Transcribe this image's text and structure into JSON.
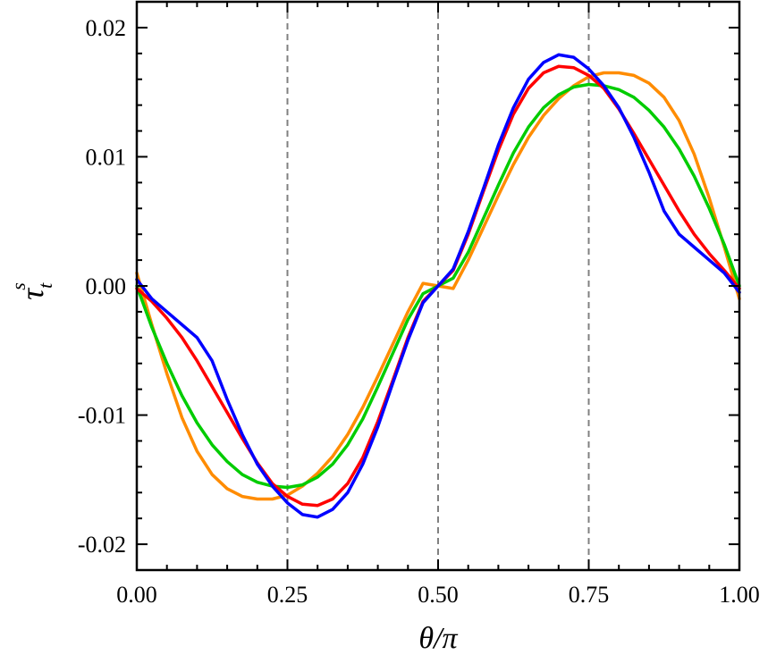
{
  "chart_data": {
    "type": "line",
    "xlabel": "θ/π",
    "ylabel": "τ",
    "ylabel_superscript": "s",
    "ylabel_subscript": "t",
    "xlim": [
      0,
      1
    ],
    "ylim": [
      -0.022,
      0.022
    ],
    "x_ticks": [
      0,
      0.25,
      0.5,
      0.75,
      1
    ],
    "x_tick_labels": [
      "0.00",
      "0.25",
      "0.50",
      "0.75",
      "1.00"
    ],
    "y_ticks": [
      -0.02,
      -0.01,
      0,
      0.01,
      0.02
    ],
    "y_tick_labels": [
      "-0.02",
      "-0.01",
      "0.00",
      "0.01",
      "0.02"
    ],
    "reference_lines_x": [
      0.25,
      0.5,
      0.75
    ],
    "grid": false,
    "x": [
      0,
      0.025,
      0.05,
      0.075,
      0.1,
      0.125,
      0.15,
      0.175,
      0.2,
      0.225,
      0.25,
      0.275,
      0.3,
      0.325,
      0.35,
      0.375,
      0.4,
      0.425,
      0.45,
      0.475,
      0.5,
      0.525,
      0.55,
      0.575,
      0.6,
      0.625,
      0.65,
      0.675,
      0.7,
      0.725,
      0.75,
      0.775,
      0.8,
      0.825,
      0.85,
      0.875,
      0.9,
      0.925,
      0.95,
      0.975,
      1
    ],
    "series": [
      {
        "color": "#ff8c00",
        "values": [
          0.001,
          -0.003,
          -0.0068,
          -0.0102,
          -0.0128,
          -0.0146,
          -0.0157,
          -0.0163,
          -0.0165,
          -0.0165,
          -0.0162,
          -0.0155,
          -0.0145,
          -0.0132,
          -0.0115,
          -0.0094,
          -0.007,
          -0.0045,
          -0.002,
          0.0002,
          0.0,
          -0.0002,
          0.002,
          0.0045,
          0.007,
          0.0094,
          0.0115,
          0.0132,
          0.0145,
          0.0155,
          0.0162,
          0.0165,
          0.0165,
          0.0163,
          0.0157,
          0.0146,
          0.0128,
          0.0102,
          0.0068,
          0.003,
          -0.001
        ]
      },
      {
        "color": "#00cc00",
        "values": [
          0.0,
          -0.0032,
          -0.006,
          -0.0085,
          -0.0106,
          -0.0123,
          -0.0136,
          -0.0146,
          -0.0152,
          -0.0155,
          -0.0156,
          -0.0154,
          -0.0148,
          -0.0138,
          -0.0123,
          -0.0103,
          -0.0078,
          -0.0052,
          -0.0026,
          -0.0006,
          0.0,
          0.0006,
          0.0026,
          0.0052,
          0.0078,
          0.0103,
          0.0123,
          0.0138,
          0.0148,
          0.0154,
          0.0156,
          0.0155,
          0.0152,
          0.0146,
          0.0136,
          0.0123,
          0.0106,
          0.0085,
          0.006,
          0.0032,
          0.0
        ]
      },
      {
        "color": "#ff0000",
        "values": [
          -0.0002,
          -0.0012,
          -0.0025,
          -0.004,
          -0.0058,
          -0.0078,
          -0.0098,
          -0.0118,
          -0.0137,
          -0.0153,
          -0.0163,
          -0.0169,
          -0.017,
          -0.0165,
          -0.0153,
          -0.0133,
          -0.0105,
          -0.0073,
          -0.004,
          -0.0012,
          0.0,
          0.0012,
          0.004,
          0.0073,
          0.0105,
          0.0133,
          0.0153,
          0.0165,
          0.017,
          0.0169,
          0.0163,
          0.0153,
          0.0137,
          0.0118,
          0.0098,
          0.0078,
          0.0058,
          0.004,
          0.0025,
          0.0012,
          -0.0002
        ]
      },
      {
        "color": "#0000ff",
        "values": [
          0.0005,
          -0.001,
          -0.002,
          -0.003,
          -0.004,
          -0.0058,
          -0.0088,
          -0.0115,
          -0.0138,
          -0.0155,
          -0.0168,
          -0.0177,
          -0.0179,
          -0.0173,
          -0.016,
          -0.0138,
          -0.0109,
          -0.0075,
          -0.0042,
          -0.0013,
          0.0,
          0.0013,
          0.0042,
          0.0075,
          0.0109,
          0.0138,
          0.016,
          0.0173,
          0.0179,
          0.0177,
          0.0168,
          0.0155,
          0.0138,
          0.0115,
          0.0088,
          0.0058,
          0.004,
          0.003,
          0.002,
          0.001,
          -0.0005
        ]
      }
    ]
  },
  "style": {
    "axis_color": "#000000",
    "reference_line_color": "#808080"
  }
}
